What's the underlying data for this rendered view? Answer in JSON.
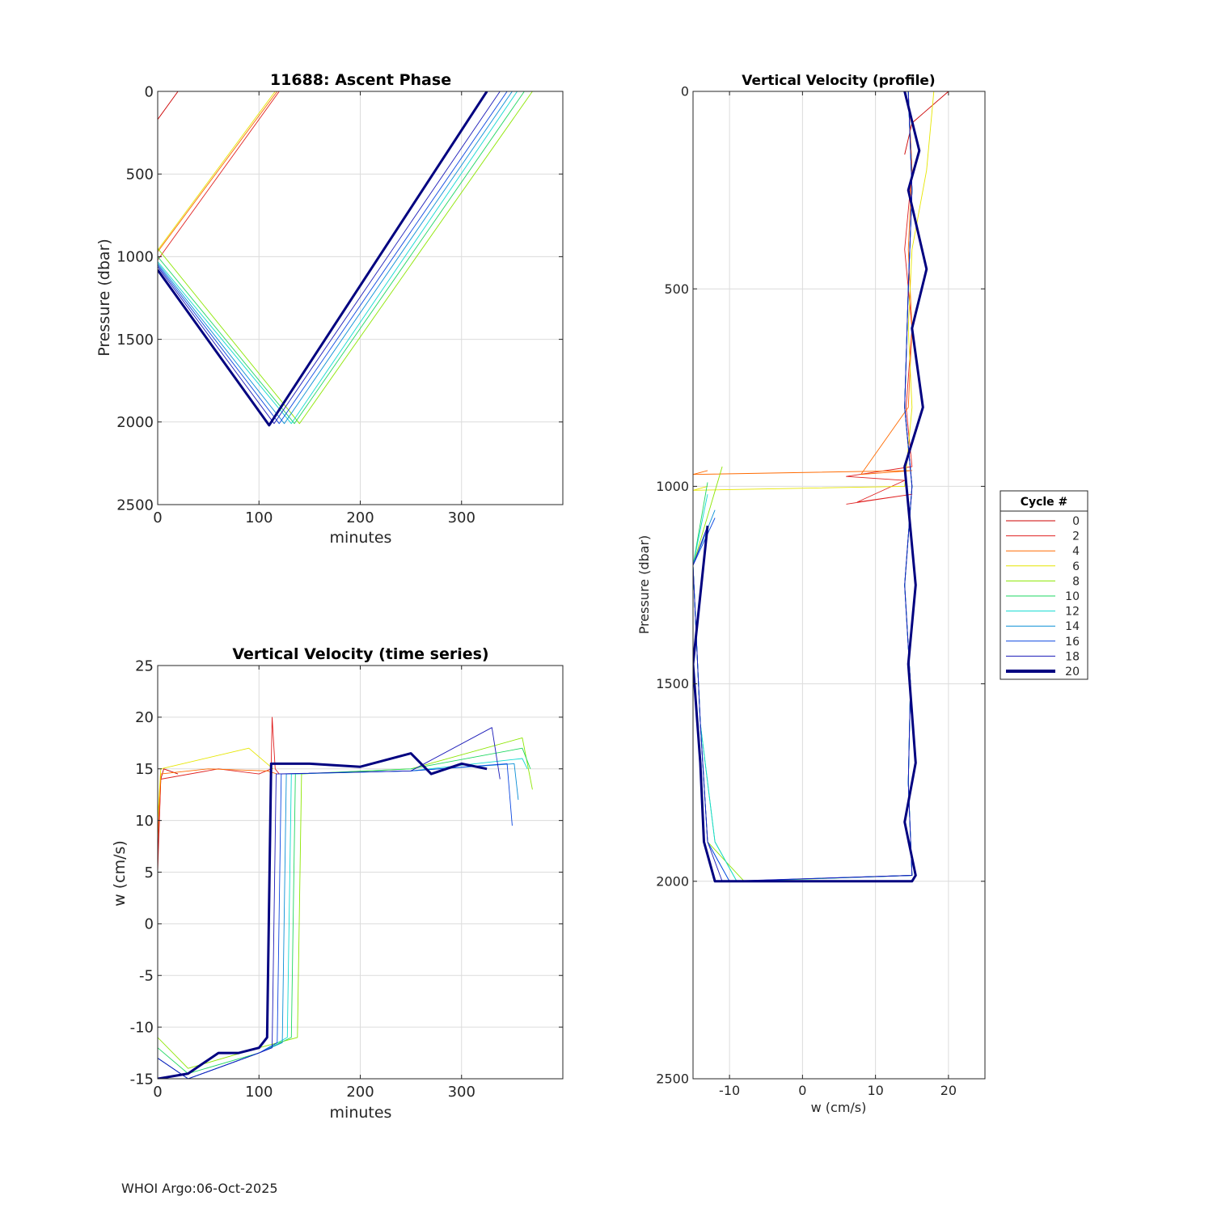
{
  "footer": "WHOI Argo:06-Oct-2025",
  "colors": {
    "cycle_0": "#cc0000",
    "cycle_2": "#e02020",
    "cycle_4": "#ff6a00",
    "cycle_6": "#e6e600",
    "cycle_8": "#8ce600",
    "cycle_10": "#1ed760",
    "cycle_12": "#11d9d0",
    "cycle_14": "#0a8fd6",
    "cycle_16": "#0a46e0",
    "cycle_18": "#1a1ab8",
    "cycle_20": "#000080"
  },
  "chart_data": [
    {
      "id": "ascent",
      "type": "line",
      "title": "11688: Ascent Phase",
      "xlabel": "minutes",
      "ylabel": "Pressure (dbar)",
      "xlim": [
        0,
        400
      ],
      "ylim": [
        0,
        2500
      ],
      "y_reversed": true,
      "xticks": [
        "0",
        "100",
        "200",
        "300"
      ],
      "xtick_values": [
        0,
        100,
        200,
        300
      ],
      "yticks": [
        "0",
        "500",
        "1000",
        "1500",
        "2000",
        "2500"
      ],
      "ytick_values": [
        0,
        500,
        1000,
        1500,
        2000,
        2500
      ],
      "grid": true,
      "series": [
        {
          "name": "0",
          "x": [
            0,
            20
          ],
          "y": [
            170,
            0
          ]
        },
        {
          "name": "2",
          "x": [
            0,
            120
          ],
          "y": [
            1020,
            0
          ]
        },
        {
          "name": "4",
          "x": [
            0,
            118
          ],
          "y": [
            970,
            0
          ]
        },
        {
          "name": "6",
          "x": [
            0,
            116
          ],
          "y": [
            960,
            0
          ]
        },
        {
          "name": "8",
          "x": [
            0,
            140,
            370
          ],
          "y": [
            950,
            2010,
            0
          ]
        },
        {
          "name": "10",
          "x": [
            0,
            135,
            362
          ],
          "y": [
            1000,
            2010,
            0
          ]
        },
        {
          "name": "12",
          "x": [
            0,
            132,
            355
          ],
          "y": [
            1030,
            2010,
            0
          ]
        },
        {
          "name": "14",
          "x": [
            0,
            125,
            350
          ],
          "y": [
            1040,
            2010,
            0
          ]
        },
        {
          "name": "16",
          "x": [
            0,
            120,
            345
          ],
          "y": [
            1050,
            2010,
            0
          ]
        },
        {
          "name": "18",
          "x": [
            0,
            115,
            338
          ],
          "y": [
            1060,
            2010,
            0
          ]
        },
        {
          "name": "20",
          "x": [
            0,
            110,
            325
          ],
          "y": [
            1080,
            2020,
            0
          ]
        }
      ]
    },
    {
      "id": "ts",
      "type": "line",
      "title": "Vertical Velocity (time series)",
      "xlabel": "minutes",
      "ylabel": "w (cm/s)",
      "xlim": [
        0,
        400
      ],
      "ylim": [
        -15,
        25
      ],
      "xticks": [
        "0",
        "100",
        "200",
        "300"
      ],
      "xtick_values": [
        0,
        100,
        200,
        300
      ],
      "yticks": [
        "-15",
        "-10",
        "-5",
        "0",
        "5",
        "10",
        "15",
        "20",
        "25"
      ],
      "ytick_values": [
        -15,
        -10,
        -5,
        0,
        5,
        10,
        15,
        20,
        25
      ],
      "grid": true,
      "series": [
        {
          "name": "0",
          "x": [
            0,
            3,
            6,
            20
          ],
          "y": [
            6,
            14,
            15,
            14.5
          ]
        },
        {
          "name": "2",
          "x": [
            0,
            3,
            60,
            100,
            112,
            113,
            116,
            120
          ],
          "y": [
            5,
            14,
            15,
            14.5,
            15,
            20,
            15,
            14.5
          ]
        },
        {
          "name": "4",
          "x": [
            0,
            3,
            50,
            108,
            118
          ],
          "y": [
            8,
            14.5,
            15,
            14.8,
            14.5
          ]
        },
        {
          "name": "6",
          "x": [
            0,
            3,
            90,
            114
          ],
          "y": [
            10,
            15,
            17,
            15
          ]
        },
        {
          "name": "8",
          "x": [
            0,
            30,
            100,
            138,
            142,
            250,
            360,
            370
          ],
          "y": [
            -11,
            -14,
            -12,
            -11,
            14.5,
            15,
            18,
            13
          ]
        },
        {
          "name": "10",
          "x": [
            0,
            30,
            100,
            132,
            136,
            250,
            360,
            368
          ],
          "y": [
            -12,
            -14.5,
            -12.5,
            -11,
            14.5,
            15,
            17,
            15
          ]
        },
        {
          "name": "12",
          "x": [
            0,
            30,
            100,
            128,
            132,
            250,
            360,
            365
          ],
          "y": [
            -13,
            -15,
            -12.5,
            -11,
            14.5,
            14.8,
            16,
            15
          ]
        },
        {
          "name": "14",
          "x": [
            0,
            30,
            100,
            123,
            127,
            250,
            352,
            356
          ],
          "y": [
            -13,
            -15,
            -12.5,
            -11.5,
            14.5,
            14.8,
            15.5,
            12
          ]
        },
        {
          "name": "16",
          "x": [
            0,
            30,
            100,
            118,
            122,
            250,
            345,
            350
          ],
          "y": [
            -13,
            -15,
            -12.5,
            -11.5,
            14.5,
            14.8,
            15.5,
            9.5
          ]
        },
        {
          "name": "18",
          "x": [
            0,
            30,
            100,
            113,
            117,
            250,
            330,
            338
          ],
          "y": [
            -13,
            -15,
            -12.5,
            -12,
            14.5,
            14.8,
            19,
            14
          ]
        },
        {
          "name": "20",
          "x": [
            0,
            30,
            60,
            80,
            100,
            108,
            112,
            150,
            200,
            250,
            270,
            300,
            325
          ],
          "y": [
            -15,
            -14.5,
            -12.5,
            -12.5,
            -12,
            -11,
            15.5,
            15.5,
            15.2,
            16.5,
            14.5,
            15.5,
            15
          ]
        }
      ]
    },
    {
      "id": "profile",
      "type": "line",
      "title": "Vertical Velocity (profile)",
      "xlabel": "w (cm/s)",
      "ylabel": "Pressure (dbar)",
      "xlim": [
        -15,
        25
      ],
      "ylim": [
        0,
        2500
      ],
      "y_reversed": true,
      "xticks": [
        "-10",
        "0",
        "10",
        "20"
      ],
      "xtick_values": [
        -10,
        0,
        10,
        20
      ],
      "yticks": [
        "0",
        "500",
        "1000",
        "1500",
        "2000",
        "2500"
      ],
      "ytick_values": [
        0,
        500,
        1000,
        1500,
        2000,
        2500
      ],
      "grid": true,
      "legend": {
        "title": "Cycle #",
        "position": "right",
        "labels": [
          "0",
          "2",
          "4",
          "6",
          "8",
          "10",
          "12",
          "14",
          "16",
          "18",
          "20"
        ]
      },
      "series": [
        {
          "name": "0",
          "w": [
            20,
            15,
            14
          ],
          "p": [
            0,
            80,
            160
          ]
        },
        {
          "name": "2",
          "w": [
            14.5,
            15,
            14,
            15,
            14.2,
            15,
            6,
            14,
            7.5,
            15,
            6
          ],
          "p": [
            0,
            200,
            400,
            600,
            800,
            950,
            975,
            985,
            1040,
            1020,
            1045
          ]
        },
        {
          "name": "4",
          "w": [
            14.5,
            15,
            14.5,
            15,
            14.5,
            8,
            15,
            -15,
            -13
          ],
          "p": [
            0,
            200,
            400,
            600,
            800,
            970,
            960,
            970,
            960
          ]
        },
        {
          "name": "6",
          "w": [
            18,
            17,
            15,
            14.5,
            15,
            14,
            -15,
            -13
          ],
          "p": [
            0,
            200,
            400,
            600,
            800,
            1000,
            1010,
            1000
          ]
        },
        {
          "name": "8",
          "w": [
            14.5,
            15,
            14.5,
            14,
            15,
            14,
            14.8,
            14.5,
            15,
            -8,
            -13,
            -14,
            -15,
            -11
          ],
          "p": [
            0,
            250,
            500,
            800,
            1000,
            1250,
            1500,
            1750,
            1985,
            2000,
            1900,
            1600,
            1200,
            950
          ]
        },
        {
          "name": "10",
          "w": [
            14.5,
            15,
            14.5,
            14,
            15,
            14,
            14.8,
            14.5,
            15,
            -9,
            -12,
            -14,
            -15,
            -13
          ],
          "p": [
            0,
            250,
            500,
            800,
            1000,
            1250,
            1500,
            1750,
            1985,
            2000,
            1900,
            1600,
            1200,
            990
          ]
        },
        {
          "name": "12",
          "w": [
            14.5,
            15,
            14.5,
            14,
            15,
            14,
            14.8,
            14.5,
            15,
            -9,
            -12,
            -14,
            -15,
            -13
          ],
          "p": [
            0,
            250,
            500,
            800,
            1000,
            1250,
            1500,
            1750,
            1985,
            2000,
            1900,
            1600,
            1200,
            1020
          ]
        },
        {
          "name": "14",
          "w": [
            14.5,
            15,
            14.5,
            14,
            15,
            14,
            14.8,
            14.5,
            15,
            -10,
            -13,
            -14,
            -15,
            -12
          ],
          "p": [
            0,
            250,
            500,
            800,
            1000,
            1250,
            1500,
            1750,
            1985,
            2000,
            1900,
            1600,
            1200,
            1060
          ]
        },
        {
          "name": "16",
          "w": [
            14.5,
            15,
            14.5,
            14,
            15,
            14,
            14.8,
            14.5,
            15,
            -10,
            -13,
            -14,
            -15,
            -12
          ],
          "p": [
            0,
            250,
            500,
            800,
            1000,
            1250,
            1500,
            1750,
            1985,
            2000,
            1900,
            1600,
            1200,
            1080
          ]
        },
        {
          "name": "18",
          "w": [
            14.5,
            15,
            14.5,
            14,
            15,
            14,
            14.8,
            14.5,
            15,
            -11,
            -13,
            -14,
            -15,
            -13
          ],
          "p": [
            0,
            250,
            500,
            800,
            1000,
            1250,
            1500,
            1750,
            1985,
            2000,
            1900,
            1600,
            1200,
            1100
          ]
        },
        {
          "name": "20",
          "w": [
            14,
            16,
            14.5,
            17,
            15,
            16.5,
            14,
            15.5,
            14.5,
            15.5,
            14,
            15.5,
            15,
            -12,
            -13.5,
            -14,
            -15,
            -13
          ],
          "p": [
            0,
            150,
            250,
            450,
            600,
            800,
            950,
            1250,
            1450,
            1700,
            1850,
            1985,
            2000,
            2000,
            1900,
            1700,
            1450,
            1100
          ]
        }
      ]
    }
  ]
}
